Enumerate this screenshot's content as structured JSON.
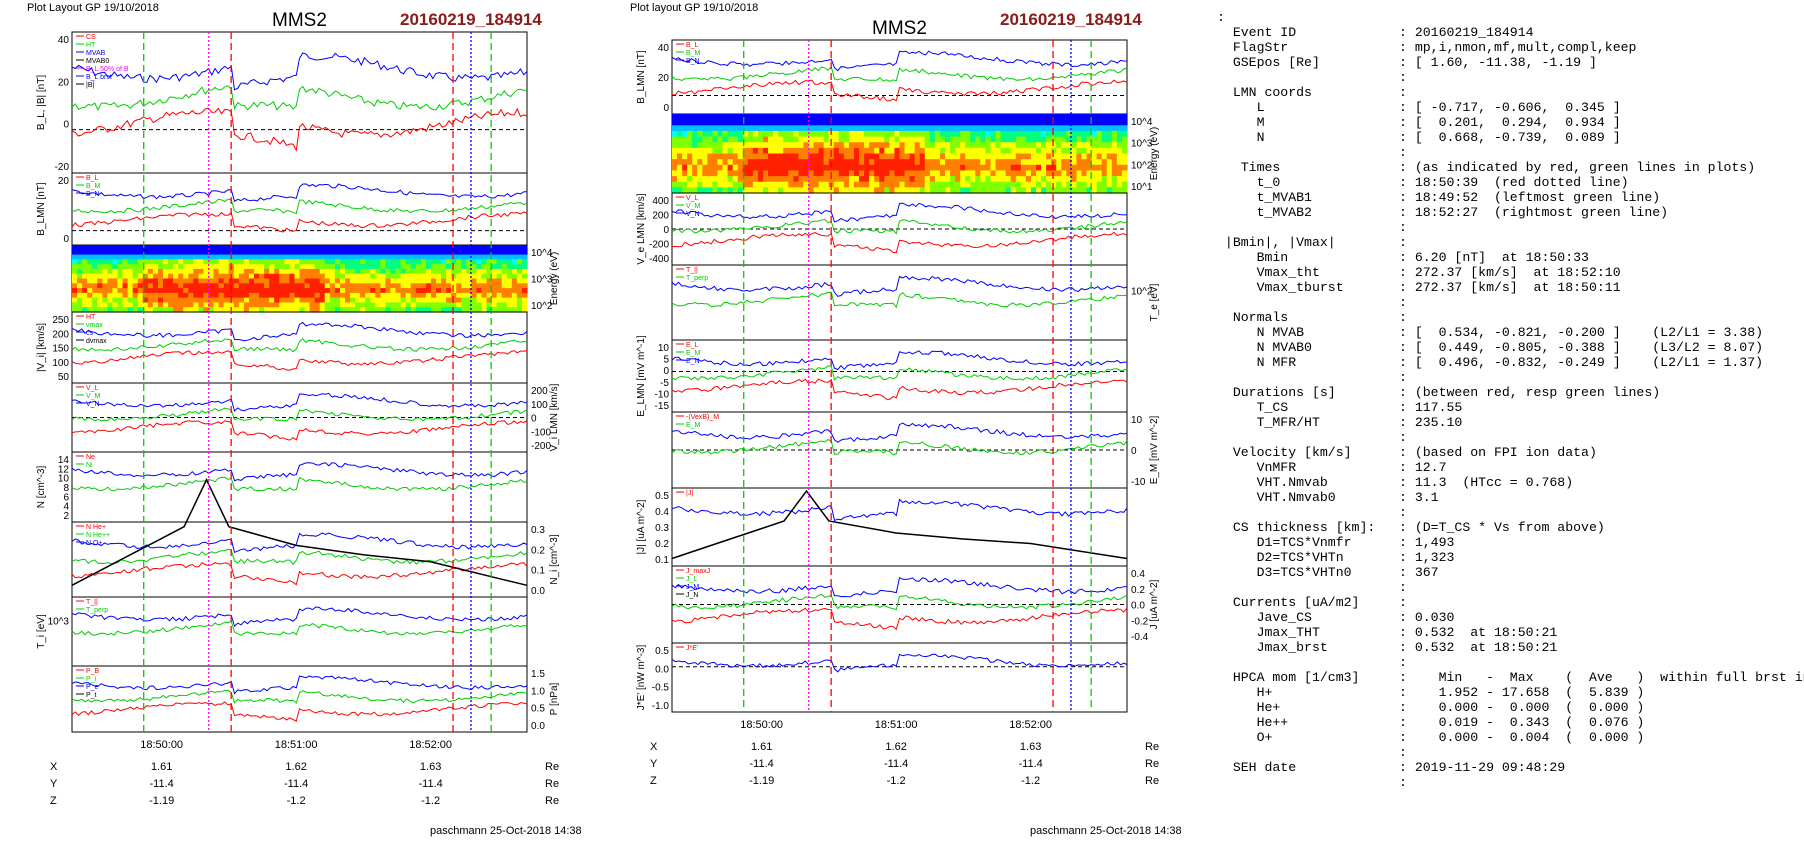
{
  "left_plot": {
    "header": "Plot Layout GP 19/10/2018",
    "spacecraft": "MMS2",
    "event": "20160219_184914",
    "footer": "paschmann 25-Oct-2018 14:38",
    "panels": [
      {
        "ylabel": "B_L, |B| [nT]",
        "ylim": [
          -20,
          45
        ],
        "ticks": [
          "40",
          "20",
          "0",
          "-20"
        ],
        "ticks_side": "left",
        "legend": [
          "CS",
          "HT",
          "MVAB",
          "MVAB0",
          "B_L 50% of B",
          "B_L brst",
          "|B|"
        ]
      },
      {
        "ylabel": "B_LMN [nT]",
        "ylim": [
          -10,
          40
        ],
        "ticks": [
          "20",
          "0"
        ],
        "ticks_side": "left",
        "legend": [
          "B_L",
          "B_M",
          "B_N"
        ]
      },
      {
        "ylabel": "Energy (eV)",
        "ylim": [
          1,
          4.5
        ],
        "ticks": [
          "10^4",
          "10^3",
          "10^2"
        ],
        "ticks_side": "right",
        "legend": []
      },
      {
        "ylabel": "|V_i| [km/s]",
        "ylim": [
          40,
          280
        ],
        "ticks": [
          "250",
          "200",
          "150",
          "100",
          "50"
        ],
        "ticks_side": "left",
        "legend": [
          "HT",
          "vmax",
          "cs",
          "dvmax"
        ]
      },
      {
        "ylabel": "V_i LMN [km/s]",
        "ylim": [
          -220,
          220
        ],
        "ticks": [
          "200",
          "100",
          "0",
          "-100",
          "-200"
        ],
        "ticks_side": "right",
        "legend": [
          "V_L",
          "V_M",
          "V_N"
        ]
      },
      {
        "ylabel": "N [cm^-3]",
        "ylim": [
          1,
          15
        ],
        "ticks": [
          "14",
          "12",
          "10",
          "8",
          "6",
          "4",
          "2"
        ],
        "ticks_side": "left",
        "legend": [
          "Ne",
          "Ni"
        ]
      },
      {
        "ylabel": "N_i [cm^-3]",
        "ylim": [
          0,
          0.32
        ],
        "ticks": [
          "0.3",
          "0.2",
          "0.1",
          "0.0"
        ],
        "ticks_side": "right",
        "legend": [
          "N He+",
          "N He++",
          "N O+"
        ]
      },
      {
        "ylabel": "T_i [eV]",
        "ylim": [
          0,
          1
        ],
        "ticks": [
          "10^3"
        ],
        "ticks_side": "left",
        "legend": [
          "T_||",
          "T_perp"
        ]
      },
      {
        "ylabel": "P [nPa]",
        "ylim": [
          0,
          1.6
        ],
        "ticks": [
          "1.5",
          "1.0",
          "0.5",
          "0.0"
        ],
        "ticks_side": "right",
        "legend": [
          "P_B",
          "P_i",
          "P_e",
          "P_t"
        ]
      }
    ],
    "time_ticks": [
      "18:50:00",
      "18:51:00",
      "18:52:00"
    ],
    "ephem": {
      "rows": [
        {
          "name": "X",
          "values": [
            "1.61",
            "1.62",
            "1.63"
          ],
          "unit": "Re"
        },
        {
          "name": "Y",
          "values": [
            "-11.4",
            "-11.4",
            "-11.4"
          ],
          "unit": "Re"
        },
        {
          "name": "Z",
          "values": [
            "-1.19",
            "-1.2",
            "-1.2"
          ],
          "unit": "Re"
        }
      ]
    }
  },
  "right_plot": {
    "header": "Plot layout GP 19/10/2018",
    "spacecraft": "MMS2",
    "event": "20160219_184914",
    "footer": "paschmann 25-Oct-2018 14:38",
    "panels": [
      {
        "ylabel": "B_LMN [nT]",
        "ylim": [
          -15,
          45
        ],
        "ticks": [
          "40",
          "20",
          "0"
        ],
        "ticks_side": "left",
        "legend": [
          "B_L",
          "B_M",
          "B_N"
        ]
      },
      {
        "ylabel": "Energy (eV)",
        "ylim": [
          1,
          4.5
        ],
        "ticks": [
          "10^4",
          "10^3",
          "10^2",
          "10^1"
        ],
        "ticks_side": "right",
        "legend": []
      },
      {
        "ylabel": "V_e LMN [km/s]",
        "ylim": [
          -450,
          450
        ],
        "ticks": [
          "400",
          "200",
          "0",
          "-200",
          "-400"
        ],
        "ticks_side": "left",
        "legend": [
          "V_L",
          "V_M",
          "V_N"
        ]
      },
      {
        "ylabel": "T_e [eV]",
        "ylim": [
          0,
          1
        ],
        "ticks": [
          "10^2"
        ],
        "ticks_side": "right",
        "legend": [
          "T_||",
          "T_perp"
        ]
      },
      {
        "ylabel": "E_LMN [mV m^-1]",
        "ylim": [
          -18,
          14
        ],
        "ticks": [
          "10",
          "5",
          "0",
          "-5",
          "-10",
          "-15"
        ],
        "ticks_side": "left",
        "legend": [
          "E_L",
          "E_M",
          "E_N"
        ]
      },
      {
        "ylabel": "E_M [mV m^-2]",
        "ylim": [
          -14,
          14
        ],
        "ticks": [
          "10",
          "0",
          "-10"
        ],
        "ticks_side": "right",
        "legend": [
          "-(VexB)_M",
          "E_M"
        ]
      },
      {
        "ylabel": "|J| [uA m^-2]",
        "ylim": [
          0,
          0.52
        ],
        "ticks": [
          "0.5",
          "0.4",
          "0.3",
          "0.2",
          "0.1"
        ],
        "ticks_side": "left",
        "legend": [
          "|J|"
        ]
      },
      {
        "ylabel": "J [uA m^-2]",
        "ylim": [
          -0.5,
          0.5
        ],
        "ticks": [
          "0.4",
          "0.2",
          "0.0",
          "-0.2",
          "-0.4"
        ],
        "ticks_side": "right",
        "legend": [
          "J_maxJ",
          "J_L",
          "J_M",
          "J_N"
        ]
      },
      {
        "ylabel": "J*E' [nW m^-3]",
        "ylim": [
          -1.05,
          0.55
        ],
        "ticks": [
          "0.5",
          "0.0",
          "-0.5",
          "-1.0"
        ],
        "ticks_side": "left",
        "legend": [
          "J*E'"
        ]
      }
    ],
    "time_ticks": [
      "18:50:00",
      "18:51:00",
      "18:52:00"
    ],
    "ephem": {
      "rows": [
        {
          "name": "X",
          "values": [
            "1.61",
            "1.62",
            "1.63"
          ],
          "unit": "Re"
        },
        {
          "name": "Y",
          "values": [
            "-11.4",
            "-11.4",
            "-11.4"
          ],
          "unit": "Re"
        },
        {
          "name": "Z",
          "values": [
            "-1.19",
            "-1.2",
            "-1.2"
          ],
          "unit": "Re"
        }
      ]
    }
  },
  "info_lines": [
    ":",
    "  Event ID             : 20160219_184914",
    "  FlagStr              : mp,i,nmon,mf,mult,compl,keep",
    "  GSEpos [Re]          : [ 1.60, -11.38, -1.19 ]",
    "                       :",
    "  LMN coords           :",
    "     L                 : [ -0.717, -0.606,  0.345 ]",
    "     M                 : [  0.201,  0.294,  0.934 ]",
    "     N                 : [  0.668, -0.739,  0.089 ]",
    "                       :",
    "   Times               : (as indicated by red, green lines in plots)",
    "     t_0               : 18:50:39  (red dotted line)",
    "     t_MVAB1           : 18:49:52  (leftmost green line)",
    "     t_MVAB2           : 18:52:27  (rightmost green line)",
    "                       :",
    " |Bmin|, |Vmax|        :",
    "     Bmin              : 6.20 [nT]  at 18:50:33",
    "     Vmax_tht          : 272.37 [km/s]  at 18:52:10",
    "     Vmax_tburst       : 272.37 [km/s]  at 18:50:11",
    "                       :",
    "  Normals              :",
    "     N MVAB            : [  0.534, -0.821, -0.200 ]    (L2/L1 = 3.38)",
    "     N MVAB0           : [  0.449, -0.805, -0.388 ]    (L3/L2 = 8.07)",
    "     N MFR             : [  0.496, -0.832, -0.249 ]    (L2/L1 = 1.37)",
    "                       :",
    "  Durations [s]        : (between red, resp green lines)",
    "     T_CS              : 117.55",
    "     T_MFR/HT          : 235.10",
    "                       :",
    "  Velocity [km/s]      : (based on FPI ion data)",
    "     VnMFR             : 12.7",
    "     VHT.Nmvab         : 11.3  (HTcc = 0.768)",
    "     VHT.Nmvab0        : 3.1",
    "                       :",
    "  CS thickness [km]:   : (D=T_CS * Vs from above)",
    "     D1=TCS*Vnmfr      : 1,493",
    "     D2=TCS*VHTn       : 1,323",
    "     D3=TCS*VHTn0      : 367",
    "                       :",
    "  Currents [uA/m2]     :",
    "     Jave_CS           : 0.030",
    "     Jmax_THT          : 0.532  at 18:50:21",
    "     Jmax_brst         : 0.532  at 18:50:21",
    "                       :",
    "  HPCA mom [1/cm3]     :    Min   -  Max    (  Ave   )  within full brst int",
    "     H+                :    1.952 - 17.658  (  5.839 )",
    "     He+               :    0.000 -  0.000  (  0.000 )",
    "     He++              :    0.019 -  0.343  (  0.076 )",
    "     O+                :    0.000 -  0.004  (  0.000 )",
    "                       :",
    "  SEH date             : 2019-11-29 09:48:29",
    "                       :"
  ],
  "colors": {
    "red": "#ff0000",
    "green": "#00cc00",
    "blue": "#0000ff",
    "black": "#000000",
    "magenta": "#ff00ff",
    "event": "#8b1a1a"
  },
  "chart_data": [
    {
      "type": "line",
      "title": "MMS2",
      "subtitle": "20160219_184914",
      "x_time_range": [
        "18:49:20",
        "18:52:43"
      ],
      "markers": {
        "green_dashed": [
          "18:49:52",
          "18:52:27"
        ],
        "red_dashed": [
          "18:50:31",
          "18:52:10"
        ],
        "magenta_dotted": "18:50:21",
        "blue_dotted": "18:52:18"
      },
      "series": [
        {
          "name": "B_L brst",
          "x": [
            "18:49:20",
            "18:49:40",
            "18:49:50",
            "18:50:00",
            "18:50:10",
            "18:50:20",
            "18:50:30",
            "18:50:40",
            "18:51:00",
            "18:51:20",
            "18:51:40",
            "18:52:00",
            "18:52:20",
            "18:52:43"
          ],
          "values": [
            38,
            40,
            38,
            28,
            18,
            -8,
            -12,
            20,
            38,
            32,
            36,
            33,
            42,
            45
          ]
        },
        {
          "name": "N He++",
          "x": [
            "18:49:30",
            "18:49:50",
            "18:50:00",
            "18:50:10",
            "18:50:20",
            "18:50:30",
            "18:50:40",
            "18:50:50",
            "18:51:00",
            "18:51:10",
            "18:51:20",
            "18:51:30",
            "18:51:40",
            "18:51:50",
            "18:52:00",
            "18:52:10",
            "18:52:20"
          ],
          "values": [
            0.08,
            0.12,
            0.2,
            0.18,
            0.3,
            0.25,
            0.32,
            0.12,
            0.19,
            0.16,
            0.14,
            0.13,
            0.12,
            0.07,
            0.05,
            0.03,
            0.02
          ]
        }
      ]
    },
    {
      "type": "line",
      "title": "MMS2",
      "subtitle": "20160219_184914",
      "x_time_range": [
        "18:49:20",
        "18:52:43"
      ],
      "series": [
        {
          "name": "|J|",
          "x": [
            "18:49:20",
            "18:49:40",
            "18:50:00",
            "18:50:10",
            "18:50:20",
            "18:50:30",
            "18:51:00",
            "18:51:30",
            "18:52:00",
            "18:52:30",
            "18:52:43"
          ],
          "values": [
            0.05,
            0.15,
            0.25,
            0.3,
            0.5,
            0.3,
            0.22,
            0.18,
            0.15,
            0.08,
            0.05
          ]
        }
      ]
    }
  ]
}
